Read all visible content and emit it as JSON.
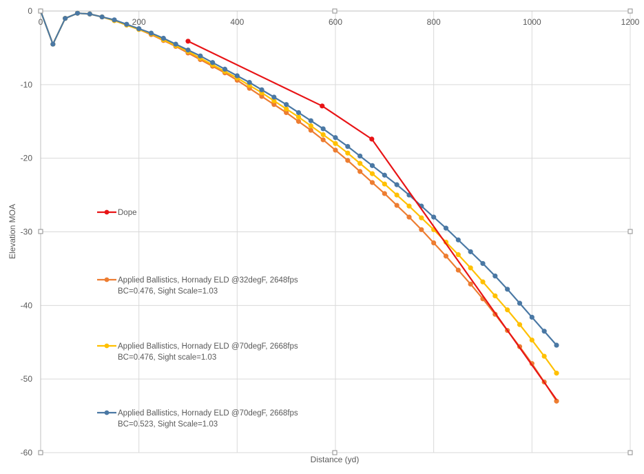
{
  "chart_data": {
    "type": "line",
    "title": "",
    "xlabel": "Distance (yd)",
    "ylabel": "Elevation MOA",
    "xlim": [
      0,
      1200
    ],
    "ylim": [
      -60,
      0
    ],
    "xticks": [
      "0",
      "200",
      "400",
      "600",
      "800",
      "1000",
      "1200"
    ],
    "xtick_values": [
      0,
      200,
      400,
      600,
      800,
      1000,
      1200
    ],
    "yticks": [
      "0",
      "-10",
      "-20",
      "-30",
      "-40",
      "-50",
      "-60"
    ],
    "ytick_values": [
      0,
      -10,
      -20,
      -30,
      -40,
      -50,
      -60
    ],
    "grid": true,
    "legend_placement": "inside-left",
    "x": [
      0,
      25,
      50,
      75,
      100,
      125,
      150,
      175,
      200,
      225,
      250,
      275,
      300,
      325,
      350,
      375,
      400,
      425,
      450,
      475,
      500,
      525,
      550,
      575,
      600,
      625,
      650,
      675,
      700,
      725,
      750,
      775,
      800,
      825,
      850,
      875,
      900,
      925,
      950,
      975,
      1000,
      1025,
      1050
    ],
    "series": [
      {
        "name": "Dope",
        "legend_lines": [
          "Dope"
        ],
        "color": "#e81416",
        "x": [
          300,
          573,
          674,
          1050
        ],
        "values": [
          -4.1,
          -12.9,
          -17.4,
          -52.8
        ],
        "markers_shown": [
          true,
          true,
          true,
          false
        ]
      },
      {
        "name": "Applied Ballistics, Hornady ELD @32degF, 2648fps BC=0.476, Sight Scale=1.03",
        "legend_lines": [
          "Applied Ballistics, Hornady ELD @32degF, 2648fps",
          "BC=0.476, Sight Scale=1.03"
        ],
        "color": "#ed7d31",
        "values": [
          0,
          -4.5,
          -1.0,
          -0.3,
          -0.4,
          -0.8,
          -1.3,
          -1.9,
          -2.5,
          -3.2,
          -4.0,
          -4.8,
          -5.7,
          -6.6,
          -7.5,
          -8.4,
          -9.4,
          -10.5,
          -11.6,
          -12.7,
          -13.8,
          -15.0,
          -16.2,
          -17.5,
          -18.9,
          -20.3,
          -21.8,
          -23.3,
          -24.8,
          -26.4,
          -28.0,
          -29.7,
          -31.5,
          -33.3,
          -35.2,
          -37.1,
          -39.1,
          -41.2,
          -43.4,
          -45.6,
          -47.9,
          -50.4,
          -53.0
        ]
      },
      {
        "name": "Applied Ballistics, Hornady ELD @70degF, 2668fps BC=0.476, Sight scale=1.03",
        "legend_lines": [
          "Applied Ballistics, Hornady ELD @70degF, 2668fps",
          "BC=0.476, Sight scale=1.03"
        ],
        "color": "#ffc000",
        "values": [
          0,
          -4.5,
          -1.0,
          -0.3,
          -0.4,
          -0.8,
          -1.3,
          -1.9,
          -2.5,
          -3.1,
          -3.9,
          -4.7,
          -5.5,
          -6.4,
          -7.3,
          -8.2,
          -9.1,
          -10.1,
          -11.1,
          -12.2,
          -13.3,
          -14.4,
          -15.6,
          -16.8,
          -18.0,
          -19.3,
          -20.7,
          -22.1,
          -23.5,
          -25.0,
          -26.5,
          -28.1,
          -29.7,
          -31.4,
          -33.1,
          -34.9,
          -36.8,
          -38.7,
          -40.6,
          -42.6,
          -44.7,
          -46.9,
          -49.2
        ]
      },
      {
        "name": "Applied Ballistics, Hornady ELD @70degF, 2668fps BC=0.523, Sight Scale=1.03",
        "legend_lines": [
          "Applied Ballistics, Hornady ELD @70degF, 2668fps",
          "BC=0.523, Sight Scale=1.03"
        ],
        "color": "#4a78a4",
        "values": [
          0,
          -4.5,
          -1.0,
          -0.3,
          -0.4,
          -0.8,
          -1.2,
          -1.8,
          -2.4,
          -3.0,
          -3.7,
          -4.5,
          -5.3,
          -6.1,
          -7.0,
          -7.9,
          -8.8,
          -9.7,
          -10.7,
          -11.7,
          -12.7,
          -13.8,
          -14.9,
          -16.0,
          -17.2,
          -18.4,
          -19.7,
          -21.0,
          -22.3,
          -23.6,
          -25.0,
          -26.5,
          -28.0,
          -29.5,
          -31.1,
          -32.7,
          -34.3,
          -36.0,
          -37.8,
          -39.7,
          -41.6,
          -43.5,
          -45.4
        ]
      }
    ]
  }
}
